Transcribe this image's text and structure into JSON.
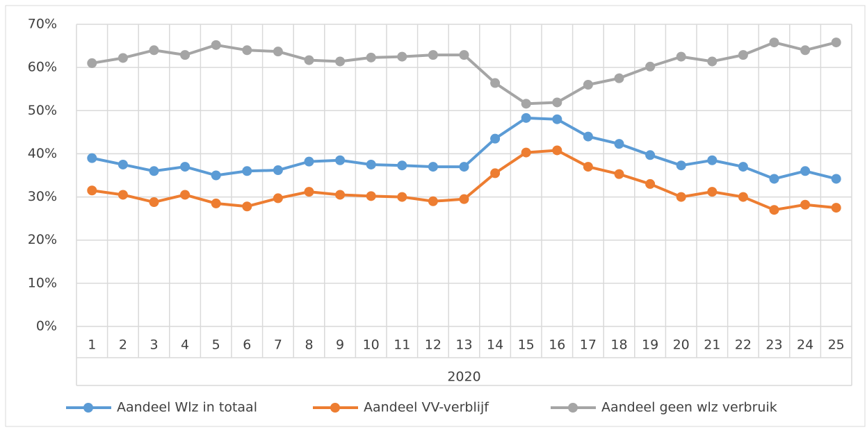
{
  "chart_data": {
    "type": "line",
    "categories": [
      "1",
      "2",
      "3",
      "4",
      "5",
      "6",
      "7",
      "8",
      "9",
      "10",
      "11",
      "12",
      "13",
      "14",
      "15",
      "16",
      "17",
      "18",
      "19",
      "20",
      "21",
      "22",
      "23",
      "24",
      "25"
    ],
    "x_group_label": "2020",
    "series": [
      {
        "name": "Aandeel Wlz in totaal",
        "color": "#5b9bd5",
        "values": [
          39,
          37.5,
          36,
          37,
          35,
          36,
          36.2,
          38.2,
          38.5,
          37.5,
          37.3,
          37,
          37,
          43.5,
          48.3,
          48,
          44,
          42.3,
          39.7,
          37.3,
          38.5,
          37,
          34.2,
          36,
          34.2
        ]
      },
      {
        "name": "Aandeel VV-verblijf",
        "color": "#ed7d31",
        "values": [
          31.5,
          30.5,
          28.8,
          30.5,
          28.5,
          27.8,
          29.7,
          31.2,
          30.5,
          30.2,
          30,
          29,
          29.5,
          35.5,
          40.3,
          40.8,
          37,
          35.3,
          33,
          30,
          31.2,
          30,
          27,
          28.2,
          27.5
        ]
      },
      {
        "name": "Aandeel geen wlz verbruik",
        "color": "#a5a5a5",
        "values": [
          61,
          62.2,
          64,
          62.9,
          65.2,
          64,
          63.7,
          61.7,
          61.4,
          62.3,
          62.5,
          62.9,
          62.9,
          56.4,
          51.6,
          51.9,
          56,
          57.5,
          60.2,
          62.5,
          61.4,
          62.9,
          65.8,
          64,
          65.8
        ]
      }
    ],
    "ylim": [
      0,
      70
    ],
    "yticks": [
      {
        "value": 0,
        "label": "0%"
      },
      {
        "value": 10,
        "label": "10%"
      },
      {
        "value": 20,
        "label": "20%"
      },
      {
        "value": 30,
        "label": "30%"
      },
      {
        "value": 40,
        "label": "40%"
      },
      {
        "value": 50,
        "label": "50%"
      },
      {
        "value": 60,
        "label": "60%"
      },
      {
        "value": 70,
        "label": "70%"
      }
    ],
    "grid": true,
    "legend": "bottom"
  }
}
